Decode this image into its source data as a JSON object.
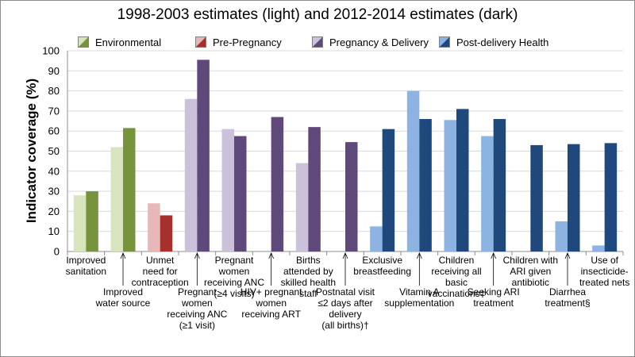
{
  "chart_data": {
    "type": "bar",
    "title": "1998-2003 estimates (light) and 2012-2014 estimates (dark)",
    "xlabel": "",
    "ylabel": "Indicator coverage (%)",
    "ylim": [
      0,
      100
    ],
    "yticks": [
      0,
      10,
      20,
      30,
      40,
      50,
      60,
      70,
      80,
      90,
      100
    ],
    "grid": true,
    "legend_position": "top",
    "groups": [
      {
        "name": "Environmental",
        "light": "#d7e4bd",
        "dark": "#77933c"
      },
      {
        "name": "Pre-Pregnancy",
        "light": "#e6b9b8",
        "dark": "#a5302c"
      },
      {
        "name": "Pregnancy & Delivery",
        "light": "#ccc1da",
        "dark": "#5f497a"
      },
      {
        "name": "Post-delivery Health",
        "light": "#8db3e2",
        "dark": "#1f497d"
      }
    ],
    "series": [
      {
        "name": "1998-2003 estimates (light)",
        "values": [
          28,
          52,
          24,
          76,
          61,
          null,
          44,
          null,
          12.5,
          80,
          65.5,
          57.5,
          null,
          15,
          3
        ]
      },
      {
        "name": "2012-2014 estimates (dark)",
        "values": [
          30,
          61.5,
          18,
          95.5,
          57.5,
          67,
          62,
          54.5,
          61,
          66,
          71,
          66,
          53,
          53.5,
          54
        ]
      }
    ],
    "categories": [
      {
        "label": "Improved sanitation",
        "lines": [
          "Improved",
          "sanitation"
        ],
        "group": 0,
        "pos": "top"
      },
      {
        "label": "Improved water source",
        "lines": [
          "Improved",
          "water source"
        ],
        "group": 0,
        "pos": "bottom"
      },
      {
        "label": "Unmet need for contraception",
        "lines": [
          "Unmet",
          "need for",
          "contraception"
        ],
        "group": 1,
        "pos": "top"
      },
      {
        "label": "Pregnant women receiving ANC (≥1 visit)",
        "lines": [
          "Pregnant",
          "women",
          "receiving ANC",
          "(≥1 visit)"
        ],
        "group": 2,
        "pos": "bottom"
      },
      {
        "label": "Pregnant women receiving ANC (≥4 visits)",
        "lines": [
          "Pregnant",
          "women",
          "receiving ANC",
          "(≥4 visits)"
        ],
        "group": 2,
        "pos": "top"
      },
      {
        "label": "HIV+ pregnant women receiving ART",
        "lines": [
          "HIV+ pregnant",
          "women",
          "receiving ART"
        ],
        "group": 2,
        "pos": "bottom"
      },
      {
        "label": "Births attended by skilled health staff",
        "lines": [
          "Births",
          "attended by",
          "skilled health",
          "staff"
        ],
        "group": 2,
        "pos": "top"
      },
      {
        "label": "Postnatal visit ≤2 days after delivery (all births)†",
        "lines": [
          "Postnatal visit",
          "≤2 days after",
          "delivery",
          "(all births)†"
        ],
        "group": 2,
        "pos": "bottom"
      },
      {
        "label": "Exclusive breastfeeding",
        "lines": [
          "Exclusive",
          "breastfeeding"
        ],
        "group": 3,
        "pos": "top"
      },
      {
        "label": "Vitamin A supplementation",
        "lines": [
          "Vitamin A",
          "supplementation"
        ],
        "group": 3,
        "pos": "bottom"
      },
      {
        "label": "Children receiving all basic vaccinations‡",
        "lines": [
          "Children",
          "receiving all",
          "basic",
          "vaccinations‡"
        ],
        "group": 3,
        "pos": "top"
      },
      {
        "label": "Seeking ARI treatment",
        "lines": [
          "Seeking ARI",
          "treatment"
        ],
        "group": 3,
        "pos": "bottom"
      },
      {
        "label": "Children with ARI given antibiotic",
        "lines": [
          "Children with",
          "ARI given",
          "antibiotic"
        ],
        "group": 3,
        "pos": "top"
      },
      {
        "label": "Diarrhea treatment§",
        "lines": [
          "Diarrhea",
          "treatment§"
        ],
        "group": 3,
        "pos": "bottom"
      },
      {
        "label": "Use of insecticide-treated nets",
        "lines": [
          "Use of",
          "insecticide-",
          "treated nets"
        ],
        "group": 3,
        "pos": "top"
      }
    ]
  }
}
